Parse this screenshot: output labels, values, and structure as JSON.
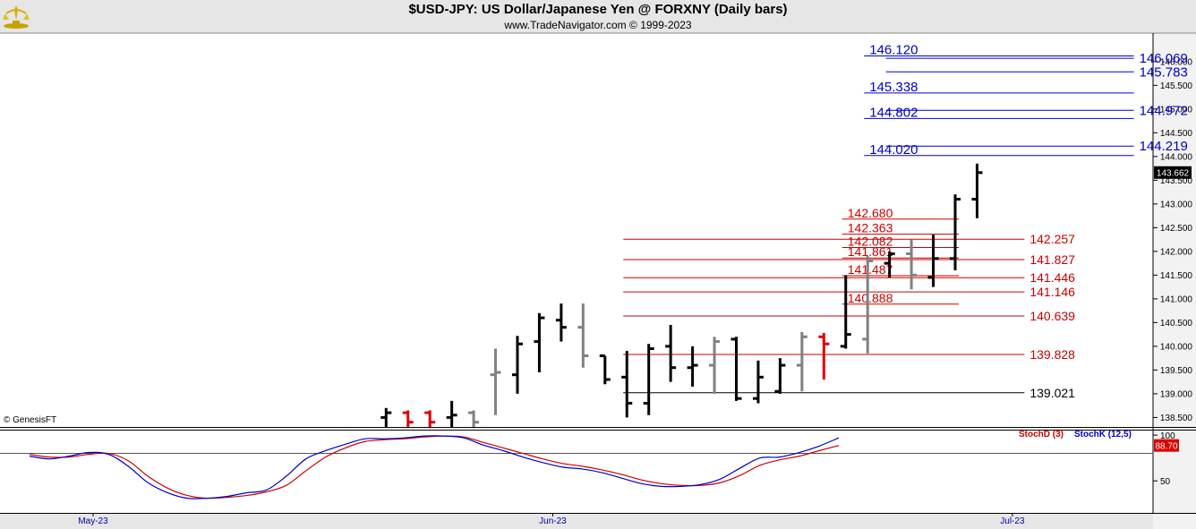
{
  "header": {
    "title": "$USD-JPY:  US Dollar/Japanese Yen @ FORXNY  (Daily bars)",
    "subtitle": "www.TradeNavigator.com © 1999-2023",
    "copyright": "© GenesisFT"
  },
  "colors": {
    "up_bar": "#000000",
    "down_bar": "#808080",
    "red_bar": "#e00000",
    "blue_level": "#0000cc",
    "red_level": "#cc0000",
    "stoch_d": "#cc0000",
    "stoch_k": "#0000cc",
    "last_price_bg": "#000000",
    "stoch_badge_bg": "#e00000"
  },
  "chart_data": {
    "type": "ohlc",
    "y_ticks": [
      "138.500",
      "139.000",
      "139.500",
      "140.000",
      "140.500",
      "141.000",
      "141.500",
      "142.000",
      "142.500",
      "143.000",
      "143.500",
      "144.000",
      "144.500",
      "145.000",
      "145.500",
      "146.000"
    ],
    "ylim": [
      138.3,
      146.6
    ],
    "last_price": "143.662",
    "x_labels": [
      {
        "label": "May-23",
        "index": 0
      },
      {
        "label": "Jun-23",
        "index": 21
      },
      {
        "label": "Jul-23",
        "index": 42
      }
    ],
    "bars": [
      {
        "i": 14,
        "o": 138.5,
        "h": 138.7,
        "l": 138.3,
        "c": 138.6,
        "color": "up"
      },
      {
        "i": 15,
        "o": 138.6,
        "h": 138.65,
        "l": 138.3,
        "c": 138.4,
        "color": "red"
      },
      {
        "i": 16,
        "o": 138.6,
        "h": 138.65,
        "l": 138.3,
        "c": 138.4,
        "color": "red"
      },
      {
        "i": 17,
        "o": 138.5,
        "h": 138.85,
        "l": 138.3,
        "c": 138.55,
        "color": "up"
      },
      {
        "i": 18,
        "o": 138.6,
        "h": 138.65,
        "l": 138.3,
        "c": 138.4,
        "color": "down"
      },
      {
        "i": 19,
        "o": 139.4,
        "h": 139.95,
        "l": 138.55,
        "c": 139.45,
        "color": "down"
      },
      {
        "i": 20,
        "o": 139.4,
        "h": 140.22,
        "l": 139.0,
        "c": 140.05,
        "color": "up"
      },
      {
        "i": 21,
        "o": 140.1,
        "h": 140.7,
        "l": 139.45,
        "c": 140.6,
        "color": "up"
      },
      {
        "i": 22,
        "o": 140.55,
        "h": 140.9,
        "l": 140.1,
        "c": 140.4,
        "color": "up"
      },
      {
        "i": 23,
        "o": 140.4,
        "h": 140.9,
        "l": 139.55,
        "c": 139.8,
        "color": "down"
      },
      {
        "i": 24,
        "o": 139.8,
        "h": 139.8,
        "l": 139.2,
        "c": 139.3,
        "color": "up"
      },
      {
        "i": 25,
        "o": 139.35,
        "h": 139.9,
        "l": 138.5,
        "c": 138.8,
        "color": "up"
      },
      {
        "i": 26,
        "o": 138.8,
        "h": 140.05,
        "l": 138.55,
        "c": 139.95,
        "color": "up"
      },
      {
        "i": 27,
        "o": 140.0,
        "h": 140.45,
        "l": 139.25,
        "c": 139.55,
        "color": "up"
      },
      {
        "i": 28,
        "o": 139.55,
        "h": 140.0,
        "l": 139.15,
        "c": 139.6,
        "color": "up"
      },
      {
        "i": 29,
        "o": 139.6,
        "h": 140.2,
        "l": 139.0,
        "c": 140.1,
        "color": "down"
      },
      {
        "i": 30,
        "o": 140.15,
        "h": 140.2,
        "l": 138.85,
        "c": 138.9,
        "color": "up"
      },
      {
        "i": 31,
        "o": 138.9,
        "h": 139.7,
        "l": 138.8,
        "c": 139.35,
        "color": "up"
      },
      {
        "i": 32,
        "o": 139.05,
        "h": 139.75,
        "l": 139.0,
        "c": 139.6,
        "color": "up"
      },
      {
        "i": 33,
        "o": 139.6,
        "h": 140.3,
        "l": 139.05,
        "c": 140.2,
        "color": "down"
      },
      {
        "i": 34,
        "o": 140.2,
        "h": 140.28,
        "l": 139.3,
        "c": 140.05,
        "color": "red"
      },
      {
        "i": 35,
        "o": 140.0,
        "h": 141.5,
        "l": 139.95,
        "c": 140.25,
        "color": "up"
      },
      {
        "i": 36,
        "o": 140.15,
        "h": 141.9,
        "l": 139.85,
        "c": 141.8,
        "color": "down"
      },
      {
        "i": 37,
        "o": 141.75,
        "h": 142.0,
        "l": 141.45,
        "c": 141.95,
        "color": "up"
      },
      {
        "i": 38,
        "o": 141.95,
        "h": 142.25,
        "l": 141.2,
        "c": 141.5,
        "color": "down"
      },
      {
        "i": 39,
        "o": 141.45,
        "h": 142.35,
        "l": 141.25,
        "c": 141.85,
        "color": "up"
      },
      {
        "i": 40,
        "o": 141.85,
        "h": 143.2,
        "l": 141.6,
        "c": 143.1,
        "color": "up"
      },
      {
        "i": 41,
        "o": 143.1,
        "h": 143.85,
        "l": 142.7,
        "c": 143.66,
        "color": "up"
      }
    ],
    "levels": [
      {
        "value": 146.12,
        "label": "146.120",
        "side": "left",
        "color": "blue",
        "x0": 36,
        "x1": 48
      },
      {
        "value": 146.069,
        "label": "146.069",
        "side": "right",
        "color": "blue",
        "x0": 37,
        "x1": 48
      },
      {
        "value": 145.783,
        "label": "145.783",
        "side": "right",
        "color": "blue",
        "x0": 37,
        "x1": 48
      },
      {
        "value": 145.338,
        "label": "145.338",
        "side": "left",
        "color": "blue",
        "x0": 36,
        "x1": 48
      },
      {
        "value": 144.972,
        "label": "144.972",
        "side": "right",
        "color": "blue",
        "x0": 37,
        "x1": 48
      },
      {
        "value": 144.802,
        "label": "144.802",
        "side": "left",
        "color": "blue",
        "x0": 36,
        "x1": 48
      },
      {
        "value": 144.219,
        "label": "144.219",
        "side": "right",
        "color": "blue",
        "x0": 37,
        "x1": 48
      },
      {
        "value": 144.02,
        "label": "144.020",
        "side": "left",
        "color": "blue",
        "x0": 36,
        "x1": 48
      },
      {
        "value": 142.68,
        "label": "142.680",
        "side": "left",
        "color": "red",
        "x0": 35,
        "x1": 40
      },
      {
        "value": 142.363,
        "label": "142.363",
        "side": "left",
        "color": "red",
        "x0": 35,
        "x1": 40
      },
      {
        "value": 142.257,
        "label": "142.257",
        "side": "right",
        "color": "red",
        "x0": 25,
        "x1": 43
      },
      {
        "value": 142.082,
        "label": "142.082",
        "side": "left",
        "color": "red",
        "x0": 35,
        "x1": 40
      },
      {
        "value": 141.861,
        "label": "141.861",
        "side": "left",
        "color": "red",
        "x0": 35,
        "x1": 40
      },
      {
        "value": 141.827,
        "label": "141.827",
        "side": "right",
        "color": "red",
        "x0": 25,
        "x1": 43
      },
      {
        "value": 141.487,
        "label": "141.487",
        "side": "left",
        "color": "red",
        "x0": 35,
        "x1": 40
      },
      {
        "value": 141.446,
        "label": "141.446",
        "side": "right",
        "color": "red",
        "x0": 25,
        "x1": 43
      },
      {
        "value": 141.146,
        "label": "141.146",
        "side": "right",
        "color": "red",
        "x0": 25,
        "x1": 43
      },
      {
        "value": 140.888,
        "label": "140.888",
        "side": "left",
        "color": "red",
        "x0": 35,
        "x1": 40
      },
      {
        "value": 140.639,
        "label": "140.639",
        "side": "right",
        "color": "red",
        "x0": 25,
        "x1": 43
      },
      {
        "value": 139.828,
        "label": "139.828",
        "side": "right",
        "color": "red",
        "x0": 25,
        "x1": 43
      },
      {
        "value": 139.021,
        "label": "139.021",
        "side": "right",
        "color": "black",
        "x0": 25,
        "x1": 43
      }
    ],
    "stochastic": {
      "d_label": "StochD (3)",
      "k_label": "StochK (12,5)",
      "current_value": "88.70",
      "y_ticks": [
        "100",
        "50"
      ],
      "ylim": [
        15,
        105
      ],
      "ref_line": 80,
      "x": [
        0,
        1,
        2,
        3,
        4,
        5,
        6,
        7,
        8,
        9,
        10,
        11,
        12,
        13,
        14,
        15,
        16,
        17,
        18,
        19,
        20,
        21,
        22,
        23,
        24,
        25,
        26,
        27,
        28,
        29,
        30,
        31,
        32,
        33,
        34,
        35,
        36,
        37,
        38,
        39,
        40,
        41
      ],
      "k": [
        77,
        74,
        77,
        81,
        79,
        66,
        48,
        37,
        31,
        31,
        33,
        37,
        40,
        55,
        74,
        83,
        90,
        96,
        96,
        97,
        99,
        99,
        97,
        89,
        83,
        76,
        70,
        65,
        63,
        59,
        53,
        47,
        44,
        44,
        46,
        52,
        64,
        75,
        76,
        81,
        88,
        97
      ],
      "d": [
        79,
        76,
        76,
        79,
        80,
        72,
        55,
        42,
        34,
        31,
        32,
        34,
        38,
        45,
        61,
        76,
        86,
        93,
        95,
        96,
        98,
        99,
        98,
        92,
        86,
        80,
        74,
        69,
        66,
        62,
        57,
        51,
        47,
        45,
        45,
        48,
        56,
        67,
        73,
        77,
        83,
        88.7
      ]
    }
  }
}
